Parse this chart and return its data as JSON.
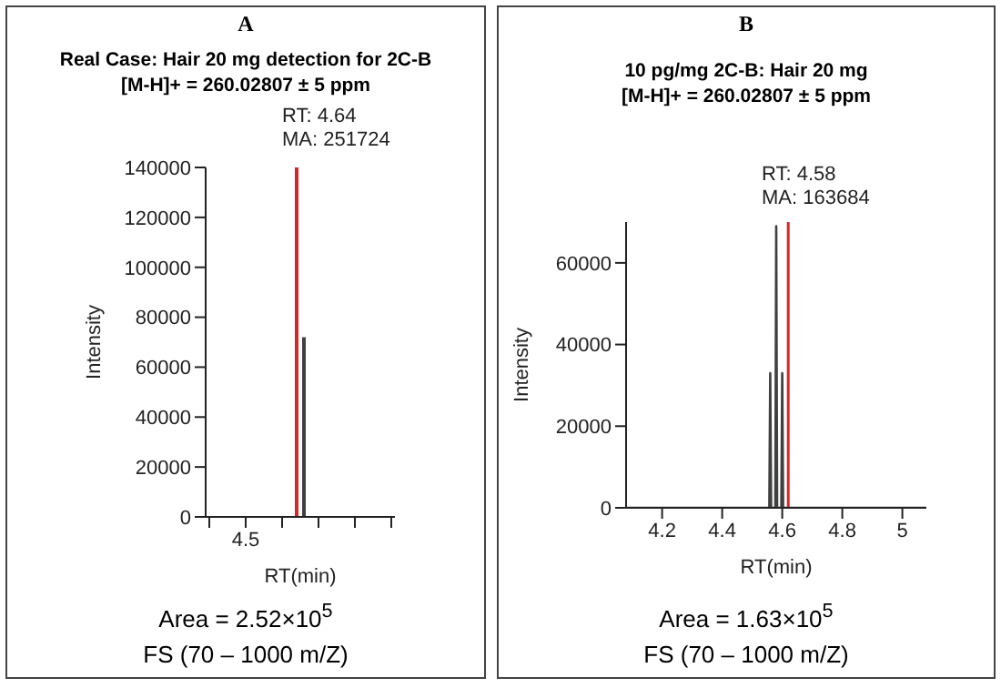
{
  "chart_data": [
    {
      "type": "bar",
      "title": "A",
      "subtitle": "Real Case: Hair 20 mg detection for 2C-B\n[M-H]+ = 260.02807 ± 5 ppm",
      "xlabel": "RT(min)",
      "ylabel": "Intensity",
      "categories": [
        null,
        null,
        null,
        null,
        null,
        "4.5",
        null,
        null,
        null,
        null,
        null,
        null,
        null,
        null,
        null,
        null,
        null,
        null,
        null,
        null,
        null,
        null,
        null,
        null,
        null,
        null
      ],
      "values": [
        null,
        null,
        null,
        null,
        null,
        null,
        null,
        null,
        null,
        null,
        null,
        null,
        140000,
        72000,
        null,
        null,
        null,
        null,
        null,
        null,
        null,
        null,
        null,
        null,
        null,
        null
      ],
      "colors": [
        null,
        null,
        null,
        null,
        null,
        null,
        null,
        null,
        null,
        null,
        null,
        null,
        "#d62728",
        "#404040",
        null,
        null,
        null,
        null,
        null,
        null,
        null,
        null,
        null,
        null,
        null,
        null
      ],
      "ylim": [
        0,
        140000
      ],
      "yticks": [
        0,
        20000,
        40000,
        60000,
        80000,
        100000,
        120000,
        140000
      ],
      "annotations": [
        "RT: 4.64\nMA: 251724",
        "Area = 2.52×10$^{5}$",
        "FS (70 – 1000 m/Z)"
      ],
      "grid": false,
      "legend": false
    },
    {
      "type": "line",
      "title": "B",
      "subtitle": "10 pg/mg 2C-B: Hair 20 mg\n[M-H]+ = 260.02807 ± 5 ppm",
      "xlabel": "RT(min)",
      "ylabel": "Intensity",
      "x": [
        4.08,
        4.557,
        4.56,
        4.563,
        4.577,
        4.58,
        4.583,
        4.597,
        4.6,
        4.603,
        5.08
      ],
      "series": [
        {
          "color": "#404040",
          "values": [
            0,
            0,
            33000,
            0,
            0,
            69000,
            0,
            0,
            33000,
            0,
            0
          ]
        }
      ],
      "xlim": [
        4.08,
        5.08
      ],
      "xticks": [
        4.2,
        4.4,
        4.6,
        4.8,
        5.0
      ],
      "ylim": [
        0,
        70000
      ],
      "yticks": [
        0,
        20000,
        40000,
        60000
      ],
      "ref_lines": [
        {
          "axis": "x",
          "value": 4.62,
          "color": "#d62728"
        }
      ],
      "annotations": [
        {
          "text": "RT: 4.58\nMA: 163684",
          "x": 4.58,
          "y": 69000
        },
        "Area = 1.63×10$^{5}$",
        "FS (70 – 1000 m/Z)"
      ],
      "grid": false,
      "legend": false,
      "marker": "none",
      "line_style": "solid"
    }
  ]
}
